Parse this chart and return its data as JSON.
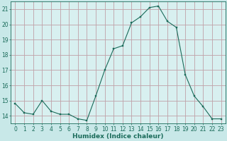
{
  "x": [
    0,
    1,
    2,
    3,
    4,
    5,
    6,
    7,
    8,
    9,
    10,
    11,
    12,
    13,
    14,
    15,
    16,
    17,
    18,
    19,
    20,
    21,
    22,
    23
  ],
  "y": [
    14.8,
    14.2,
    14.1,
    15.0,
    14.3,
    14.1,
    14.1,
    13.8,
    13.7,
    15.3,
    17.0,
    18.4,
    18.6,
    20.1,
    20.5,
    21.1,
    21.2,
    20.2,
    19.8,
    16.7,
    15.3,
    14.6,
    13.8,
    13.8
  ],
  "line_color": "#1a6b5a",
  "marker": "s",
  "marker_size": 1.8,
  "background_color": "#c8e8e8",
  "plot_bg_color": "#d8f0f0",
  "grid_color": "#c0a0a8",
  "xlabel": "Humidex (Indice chaleur)",
  "ylabel": "",
  "xlim": [
    -0.5,
    23.5
  ],
  "ylim": [
    13.5,
    21.5
  ],
  "yticks": [
    14,
    15,
    16,
    17,
    18,
    19,
    20,
    21
  ],
  "xticks": [
    0,
    1,
    2,
    3,
    4,
    5,
    6,
    7,
    8,
    9,
    10,
    11,
    12,
    13,
    14,
    15,
    16,
    17,
    18,
    19,
    20,
    21,
    22,
    23
  ],
  "xlabel_fontsize": 6.5,
  "tick_fontsize": 5.5
}
